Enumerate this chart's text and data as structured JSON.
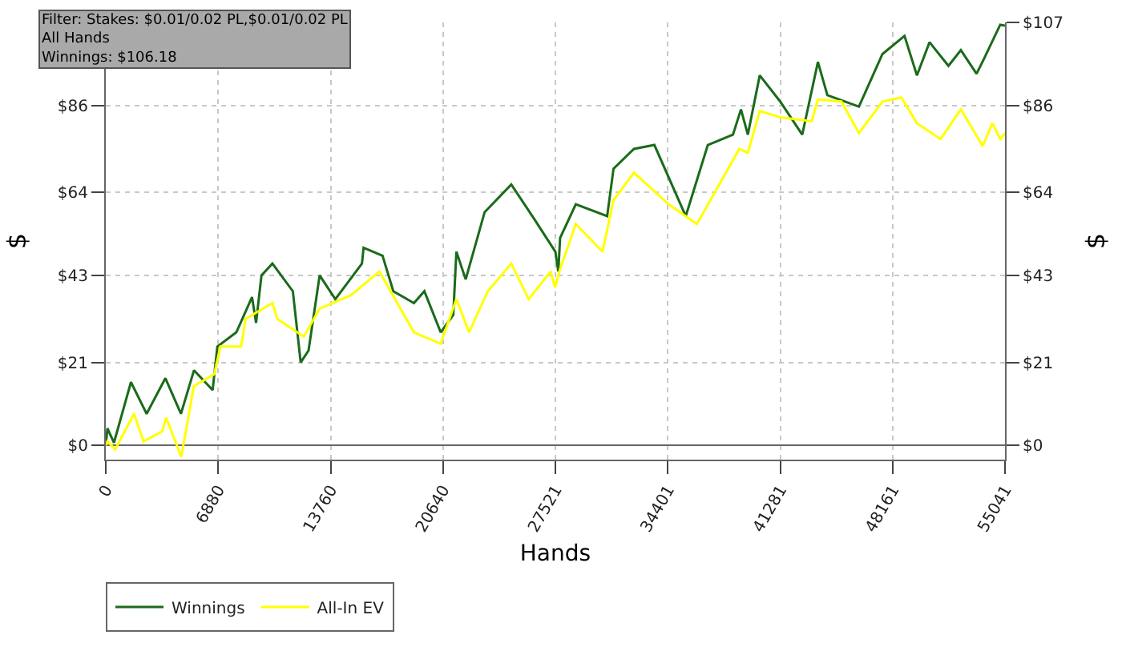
{
  "chart_data": {
    "type": "line",
    "xlabel": "Hands",
    "ylabel": "$",
    "y2label": "$",
    "annotations": [
      "Filter: Stakes: $0.01/0.02 PL,$0.01/0.02 PL",
      "All Hands",
      "Winnings: $106.18"
    ],
    "xlim": [
      0,
      55041
    ],
    "xticks": [
      0,
      6880,
      13760,
      20640,
      27521,
      34401,
      41281,
      48161,
      55041
    ],
    "ylim": [
      -3.6,
      107
    ],
    "yticks": [
      {
        "value": 0,
        "label": "$0"
      },
      {
        "value": 21,
        "label": "$21"
      },
      {
        "value": 43,
        "label": "$43"
      },
      {
        "value": 64,
        "label": "$64"
      },
      {
        "value": 86,
        "label": "$86"
      }
    ],
    "y2lim": [
      -3.6,
      107
    ],
    "y2ticks": [
      {
        "value": 0,
        "label": "$0"
      },
      {
        "value": 21,
        "label": "$21"
      },
      {
        "value": 43,
        "label": "$43"
      },
      {
        "value": 64,
        "label": "$64"
      },
      {
        "value": 86,
        "label": "$86"
      },
      {
        "value": 107,
        "label": "$107"
      }
    ],
    "grid": true,
    "legend": "bottom left",
    "marker": "none",
    "line_style": "solid",
    "series": [
      {
        "name": "Winnings",
        "color": "#1a6b1a",
        "x": [
          0,
          100,
          500,
          1540,
          2500,
          3650,
          4600,
          5400,
          6540,
          6830,
          7990,
          8950,
          9200,
          9530,
          10200,
          11450,
          11930,
          12410,
          13090,
          14050,
          15680,
          15780,
          16940,
          17600,
          18860,
          19500,
          20500,
          21270,
          21460,
          22030,
          23190,
          24820,
          26270,
          27520,
          27700,
          27810,
          28770,
          30690,
          31080,
          32330,
          33580,
          35500,
          36850,
          38390,
          38880,
          39300,
          40030,
          41280,
          42630,
          43590,
          44170,
          46100,
          47540,
          48890,
          49650,
          50420,
          51580,
          52340,
          53300,
          53780,
          54750,
          55041
        ],
        "values": [
          0,
          4.3,
          0.7,
          16,
          8,
          17,
          8,
          19,
          14,
          25,
          28.6,
          37.5,
          31,
          43,
          46,
          39,
          21,
          24,
          43,
          37,
          46,
          50,
          48,
          39,
          36,
          39,
          28.6,
          33,
          49,
          42,
          59,
          66,
          57,
          49,
          44,
          52.5,
          61,
          58,
          70,
          75,
          76,
          58,
          76,
          78.6,
          85,
          78.6,
          93.6,
          87,
          78.6,
          97,
          88.6,
          85.7,
          99,
          103.6,
          93.6,
          102,
          96,
          100,
          94,
          98,
          106.4,
          106.18
        ]
      },
      {
        "name": "All-In EV",
        "color": "#ffff00",
        "x": [
          0,
          100,
          580,
          1730,
          2310,
          3460,
          3700,
          4620,
          5390,
          6640,
          7020,
          8280,
          8560,
          10200,
          10500,
          12120,
          13090,
          15010,
          16750,
          18860,
          20500,
          21460,
          22230,
          23380,
          24820,
          25890,
          27230,
          27500,
          27810,
          28770,
          30400,
          31080,
          32330,
          34450,
          36180,
          38780,
          39300,
          40030,
          41280,
          43210,
          43590,
          45030,
          46100,
          47540,
          48700,
          49650,
          51100,
          52340,
          53680,
          54270,
          54750,
          55041
        ],
        "values": [
          0,
          1,
          -1,
          8,
          1,
          3.6,
          7,
          -2.9,
          15,
          18,
          25,
          25,
          32,
          36,
          32,
          27.5,
          34.6,
          38,
          44,
          28.6,
          25.7,
          37,
          28.6,
          39,
          46,
          37,
          44,
          40,
          44.6,
          56,
          49,
          62,
          69,
          61,
          56,
          75,
          74,
          84.6,
          83,
          82,
          87.5,
          87,
          79,
          87,
          88,
          81.5,
          77.5,
          85,
          75.7,
          81.5,
          77.5,
          79
        ]
      }
    ]
  }
}
